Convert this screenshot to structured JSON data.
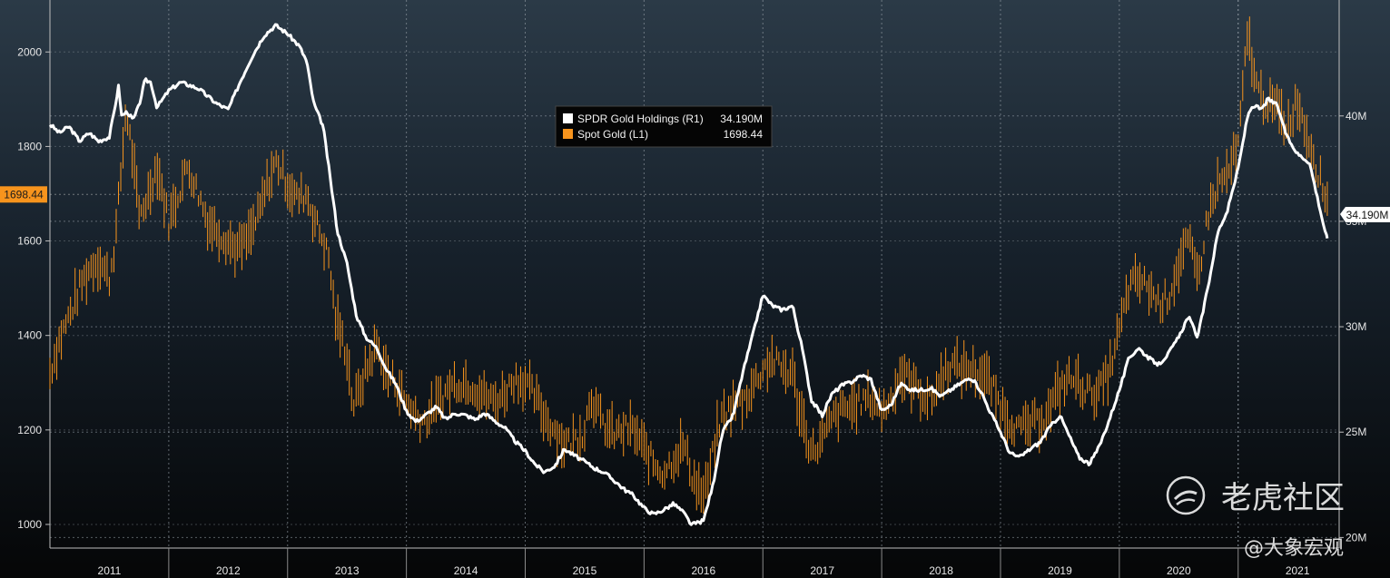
{
  "chart_data": {
    "type": "line",
    "legend_position": "top-center",
    "grid": true,
    "x_range": [
      2010.5,
      2021.35
    ],
    "x_ticks": [
      {
        "label": "2011",
        "value": 2011.0
      },
      {
        "label": "2012",
        "value": 2012.0
      },
      {
        "label": "2013",
        "value": 2013.0
      },
      {
        "label": "2014",
        "value": 2014.0
      },
      {
        "label": "2015",
        "value": 2015.0
      },
      {
        "label": "2016",
        "value": 2016.0
      },
      {
        "label": "2017",
        "value": 2017.0
      },
      {
        "label": "2018",
        "value": 2018.0
      },
      {
        "label": "2019",
        "value": 2019.0
      },
      {
        "label": "2020",
        "value": 2020.0
      },
      {
        "label": "2021",
        "value": 2021.0
      }
    ],
    "y_left": {
      "range": [
        950,
        2110
      ],
      "ticks": [
        "1000",
        "1200",
        "1400",
        "1600",
        "1800",
        "2000"
      ],
      "last_value_label": "1698.44",
      "last_value": 1698.44
    },
    "y_right": {
      "range": [
        19.5,
        45.5
      ],
      "ticks": [
        {
          "label": "20M",
          "value": 20
        },
        {
          "label": "25M",
          "value": 25
        },
        {
          "label": "30M",
          "value": 30
        },
        {
          "label": "35M",
          "value": 35
        },
        {
          "label": "40M",
          "value": 40
        }
      ],
      "last_value_label": "34.190M",
      "last_value": 34.19
    },
    "legend": [
      {
        "name": "SPDR Gold Holdings (R1)",
        "value": "34.190M",
        "color": "#ffffff"
      },
      {
        "name": "Spot Gold (L1)",
        "value": "1698.44",
        "color": "#f7941d"
      }
    ],
    "series": [
      {
        "name": "Spot Gold (L1)",
        "axis": "left",
        "color": "#f7941d",
        "points": [
          [
            2010.5,
            1320
          ],
          [
            2010.58,
            1390
          ],
          [
            2010.66,
            1440
          ],
          [
            2010.75,
            1500
          ],
          [
            2010.83,
            1540
          ],
          [
            2010.91,
            1560
          ],
          [
            2011.0,
            1520
          ],
          [
            2011.05,
            1600
          ],
          [
            2011.1,
            1750
          ],
          [
            2011.14,
            1880
          ],
          [
            2011.2,
            1770
          ],
          [
            2011.25,
            1650
          ],
          [
            2011.33,
            1700
          ],
          [
            2011.4,
            1760
          ],
          [
            2011.5,
            1640
          ],
          [
            2011.58,
            1700
          ],
          [
            2011.66,
            1760
          ],
          [
            2011.75,
            1700
          ],
          [
            2011.83,
            1640
          ],
          [
            2011.92,
            1620
          ],
          [
            2012.0,
            1600
          ],
          [
            2012.08,
            1580
          ],
          [
            2012.16,
            1600
          ],
          [
            2012.25,
            1650
          ],
          [
            2012.33,
            1720
          ],
          [
            2012.41,
            1770
          ],
          [
            2012.5,
            1720
          ],
          [
            2012.58,
            1690
          ],
          [
            2012.66,
            1700
          ],
          [
            2012.72,
            1650
          ],
          [
            2012.8,
            1600
          ],
          [
            2012.85,
            1560
          ],
          [
            2012.9,
            1440
          ],
          [
            2012.95,
            1400
          ],
          [
            2013.0,
            1360
          ],
          [
            2013.05,
            1250
          ],
          [
            2013.1,
            1280
          ],
          [
            2013.15,
            1320
          ],
          [
            2013.25,
            1380
          ],
          [
            2013.33,
            1320
          ],
          [
            2013.41,
            1300
          ],
          [
            2013.5,
            1260
          ],
          [
            2013.58,
            1230
          ],
          [
            2013.66,
            1220
          ],
          [
            2013.75,
            1250
          ],
          [
            2013.83,
            1280
          ],
          [
            2013.91,
            1300
          ],
          [
            2014.0,
            1300
          ],
          [
            2014.08,
            1290
          ],
          [
            2014.16,
            1270
          ],
          [
            2014.25,
            1260
          ],
          [
            2014.33,
            1280
          ],
          [
            2014.41,
            1310
          ],
          [
            2014.5,
            1300
          ],
          [
            2014.58,
            1270
          ],
          [
            2014.66,
            1230
          ],
          [
            2014.75,
            1200
          ],
          [
            2014.83,
            1170
          ],
          [
            2014.91,
            1180
          ],
          [
            2015.0,
            1200
          ],
          [
            2015.05,
            1280
          ],
          [
            2015.1,
            1240
          ],
          [
            2015.16,
            1210
          ],
          [
            2015.25,
            1190
          ],
          [
            2015.33,
            1200
          ],
          [
            2015.41,
            1200
          ],
          [
            2015.5,
            1160
          ],
          [
            2015.58,
            1130
          ],
          [
            2015.66,
            1110
          ],
          [
            2015.75,
            1140
          ],
          [
            2015.83,
            1170
          ],
          [
            2015.91,
            1100
          ],
          [
            2016.0,
            1060
          ],
          [
            2016.05,
            1100
          ],
          [
            2016.1,
            1180
          ],
          [
            2016.16,
            1230
          ],
          [
            2016.25,
            1250
          ],
          [
            2016.33,
            1260
          ],
          [
            2016.41,
            1290
          ],
          [
            2016.5,
            1330
          ],
          [
            2016.58,
            1350
          ],
          [
            2016.66,
            1330
          ],
          [
            2016.75,
            1320
          ],
          [
            2016.8,
            1250
          ],
          [
            2016.86,
            1200
          ],
          [
            2016.91,
            1150
          ],
          [
            2017.0,
            1180
          ],
          [
            2017.08,
            1220
          ],
          [
            2017.16,
            1240
          ],
          [
            2017.25,
            1250
          ],
          [
            2017.33,
            1260
          ],
          [
            2017.41,
            1270
          ],
          [
            2017.5,
            1240
          ],
          [
            2017.58,
            1270
          ],
          [
            2017.66,
            1320
          ],
          [
            2017.75,
            1300
          ],
          [
            2017.83,
            1280
          ],
          [
            2017.91,
            1260
          ],
          [
            2018.0,
            1310
          ],
          [
            2018.08,
            1340
          ],
          [
            2018.16,
            1330
          ],
          [
            2018.25,
            1330
          ],
          [
            2018.33,
            1320
          ],
          [
            2018.41,
            1300
          ],
          [
            2018.5,
            1250
          ],
          [
            2018.58,
            1220
          ],
          [
            2018.66,
            1200
          ],
          [
            2018.75,
            1210
          ],
          [
            2018.83,
            1220
          ],
          [
            2018.91,
            1240
          ],
          [
            2019.0,
            1290
          ],
          [
            2019.08,
            1310
          ],
          [
            2019.16,
            1300
          ],
          [
            2019.25,
            1280
          ],
          [
            2019.33,
            1280
          ],
          [
            2019.41,
            1320
          ],
          [
            2019.5,
            1410
          ],
          [
            2019.58,
            1500
          ],
          [
            2019.66,
            1520
          ],
          [
            2019.75,
            1500
          ],
          [
            2019.83,
            1470
          ],
          [
            2019.91,
            1480
          ],
          [
            2020.0,
            1550
          ],
          [
            2020.08,
            1600
          ],
          [
            2020.16,
            1520
          ],
          [
            2020.25,
            1660
          ],
          [
            2020.33,
            1720
          ],
          [
            2020.41,
            1740
          ],
          [
            2020.5,
            1800
          ],
          [
            2020.55,
            1950
          ],
          [
            2020.58,
            2040
          ],
          [
            2020.62,
            1980
          ],
          [
            2020.66,
            1920
          ],
          [
            2020.75,
            1890
          ],
          [
            2020.83,
            1880
          ],
          [
            2020.91,
            1840
          ],
          [
            2021.0,
            1900
          ],
          [
            2021.05,
            1850
          ],
          [
            2021.1,
            1810
          ],
          [
            2021.16,
            1760
          ],
          [
            2021.22,
            1700
          ],
          [
            2021.25,
            1698.44
          ]
        ]
      },
      {
        "name": "SPDR Gold Holdings (R1)",
        "axis": "right",
        "color": "#ffffff",
        "points": [
          [
            2010.5,
            39.6
          ],
          [
            2010.58,
            39.2
          ],
          [
            2010.66,
            39.5
          ],
          [
            2010.75,
            38.8
          ],
          [
            2010.83,
            39.2
          ],
          [
            2010.91,
            38.8
          ],
          [
            2011.0,
            39.0
          ],
          [
            2011.05,
            40.5
          ],
          [
            2011.08,
            41.5
          ],
          [
            2011.1,
            40.0
          ],
          [
            2011.15,
            40.2
          ],
          [
            2011.2,
            39.8
          ],
          [
            2011.25,
            40.5
          ],
          [
            2011.3,
            41.7
          ],
          [
            2011.35,
            41.6
          ],
          [
            2011.4,
            40.4
          ],
          [
            2011.5,
            41.2
          ],
          [
            2011.6,
            41.6
          ],
          [
            2011.75,
            41.3
          ],
          [
            2011.9,
            40.6
          ],
          [
            2012.0,
            40.3
          ],
          [
            2012.1,
            41.6
          ],
          [
            2012.2,
            42.8
          ],
          [
            2012.3,
            43.8
          ],
          [
            2012.4,
            44.3
          ],
          [
            2012.5,
            43.9
          ],
          [
            2012.6,
            43.3
          ],
          [
            2012.66,
            42.6
          ],
          [
            2012.72,
            40.6
          ],
          [
            2012.8,
            39.5
          ],
          [
            2012.86,
            37.0
          ],
          [
            2012.92,
            34.5
          ],
          [
            2013.0,
            33.0
          ],
          [
            2013.08,
            30.5
          ],
          [
            2013.16,
            29.5
          ],
          [
            2013.25,
            29.0
          ],
          [
            2013.33,
            28.0
          ],
          [
            2013.41,
            27.3
          ],
          [
            2013.5,
            26.0
          ],
          [
            2013.58,
            25.5
          ],
          [
            2013.66,
            25.8
          ],
          [
            2013.75,
            26.2
          ],
          [
            2013.83,
            25.6
          ],
          [
            2013.91,
            25.9
          ],
          [
            2014.0,
            25.8
          ],
          [
            2014.08,
            25.6
          ],
          [
            2014.16,
            25.9
          ],
          [
            2014.25,
            25.5
          ],
          [
            2014.33,
            25.2
          ],
          [
            2014.41,
            24.6
          ],
          [
            2014.5,
            24.1
          ],
          [
            2014.58,
            23.5
          ],
          [
            2014.66,
            23.1
          ],
          [
            2014.75,
            23.4
          ],
          [
            2014.83,
            24.2
          ],
          [
            2014.91,
            23.9
          ],
          [
            2015.0,
            23.6
          ],
          [
            2015.08,
            23.3
          ],
          [
            2015.16,
            23.1
          ],
          [
            2015.25,
            22.7
          ],
          [
            2015.33,
            22.3
          ],
          [
            2015.41,
            22.0
          ],
          [
            2015.5,
            21.4
          ],
          [
            2015.58,
            21.1
          ],
          [
            2015.66,
            21.3
          ],
          [
            2015.75,
            21.6
          ],
          [
            2015.83,
            21.2
          ],
          [
            2015.9,
            20.6
          ],
          [
            2016.0,
            20.8
          ],
          [
            2016.08,
            22.5
          ],
          [
            2016.16,
            25.0
          ],
          [
            2016.25,
            25.8
          ],
          [
            2016.33,
            27.8
          ],
          [
            2016.41,
            29.5
          ],
          [
            2016.5,
            31.5
          ],
          [
            2016.58,
            31.0
          ],
          [
            2016.66,
            30.8
          ],
          [
            2016.75,
            31.0
          ],
          [
            2016.83,
            29.0
          ],
          [
            2016.91,
            26.5
          ],
          [
            2017.0,
            25.8
          ],
          [
            2017.08,
            26.8
          ],
          [
            2017.16,
            27.2
          ],
          [
            2017.25,
            27.4
          ],
          [
            2017.33,
            27.7
          ],
          [
            2017.41,
            27.5
          ],
          [
            2017.5,
            26.0
          ],
          [
            2017.58,
            26.3
          ],
          [
            2017.66,
            27.3
          ],
          [
            2017.75,
            27.0
          ],
          [
            2017.83,
            27.0
          ],
          [
            2017.91,
            27.1
          ],
          [
            2018.0,
            26.7
          ],
          [
            2018.08,
            27.0
          ],
          [
            2018.16,
            27.3
          ],
          [
            2018.25,
            27.6
          ],
          [
            2018.33,
            27.0
          ],
          [
            2018.41,
            26.0
          ],
          [
            2018.5,
            25.0
          ],
          [
            2018.58,
            24.0
          ],
          [
            2018.66,
            23.8
          ],
          [
            2018.75,
            24.2
          ],
          [
            2018.83,
            24.5
          ],
          [
            2018.91,
            25.2
          ],
          [
            2019.0,
            25.8
          ],
          [
            2019.08,
            24.8
          ],
          [
            2019.16,
            23.8
          ],
          [
            2019.25,
            23.5
          ],
          [
            2019.33,
            24.3
          ],
          [
            2019.41,
            25.5
          ],
          [
            2019.5,
            27.0
          ],
          [
            2019.58,
            28.5
          ],
          [
            2019.66,
            29.0
          ],
          [
            2019.75,
            28.5
          ],
          [
            2019.83,
            28.2
          ],
          [
            2019.91,
            28.7
          ],
          [
            2020.0,
            29.5
          ],
          [
            2020.08,
            30.5
          ],
          [
            2020.16,
            29.5
          ],
          [
            2020.25,
            32.0
          ],
          [
            2020.33,
            34.5
          ],
          [
            2020.41,
            35.5
          ],
          [
            2020.5,
            37.5
          ],
          [
            2020.58,
            40.0
          ],
          [
            2020.62,
            40.5
          ],
          [
            2020.7,
            40.3
          ],
          [
            2020.75,
            40.8
          ],
          [
            2020.83,
            40.5
          ],
          [
            2020.91,
            39.0
          ],
          [
            2021.0,
            38.2
          ],
          [
            2021.05,
            38.0
          ],
          [
            2021.1,
            37.8
          ],
          [
            2021.16,
            36.3
          ],
          [
            2021.22,
            34.8
          ],
          [
            2021.25,
            34.19
          ]
        ]
      }
    ]
  },
  "watermark": {
    "brand": "老虎社区",
    "author": "@大象宏观"
  }
}
